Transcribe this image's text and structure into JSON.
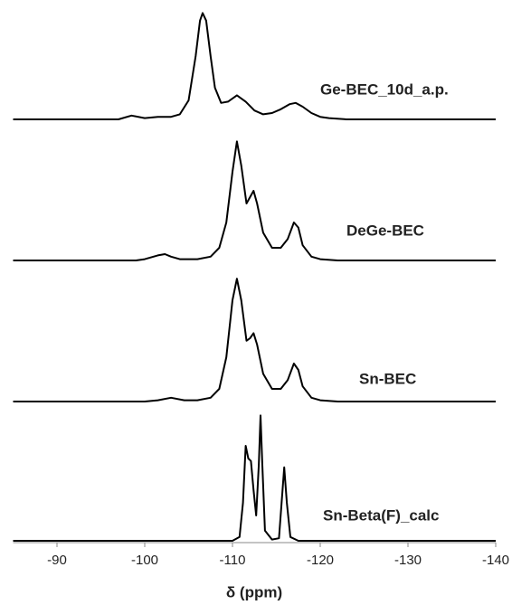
{
  "chart_data": {
    "type": "line",
    "x_label": "δ (ppm)",
    "color": "#000000",
    "xlim": [
      -85,
      -140
    ],
    "xticks": [
      -90,
      -100,
      -110,
      -120,
      -130,
      -140
    ],
    "ylim": [
      0,
      100
    ],
    "series": [
      {
        "name": "Ge-BEC_10d_a.p.",
        "x": [
          -85,
          -97,
          -98.5,
          -100,
          -101.5,
          -103,
          -104,
          -105,
          -105.8,
          -106.3,
          -106.6,
          -107,
          -107.5,
          -108,
          -108.7,
          -109.5,
          -110.5,
          -111.5,
          -112.5,
          -113.5,
          -114.5,
          -115.5,
          -116.5,
          -117.2,
          -118,
          -119,
          -120,
          -121,
          -123,
          -140
        ],
        "values": [
          0,
          0,
          3,
          1,
          2,
          2,
          4,
          15,
          50,
          78,
          84,
          78,
          50,
          25,
          13,
          14,
          19,
          14,
          7,
          4,
          5,
          8,
          12,
          13,
          10,
          5,
          2,
          1,
          0,
          0
        ]
      },
      {
        "name": "DeGe-BEC",
        "x": [
          -85,
          -99,
          -100,
          -101.5,
          -102.3,
          -103,
          -104,
          -106,
          -107.5,
          -108.5,
          -109.3,
          -110,
          -110.5,
          -111,
          -111.6,
          -112,
          -112.4,
          -112.8,
          -113.5,
          -114.5,
          -115.5,
          -116.3,
          -117,
          -117.5,
          -118,
          -119,
          -120,
          -122,
          -140
        ],
        "values": [
          0,
          0,
          1,
          4,
          5,
          3,
          1,
          1,
          3,
          10,
          30,
          70,
          94,
          75,
          45,
          50,
          55,
          45,
          22,
          10,
          10,
          17,
          30,
          26,
          12,
          3,
          1,
          0,
          0
        ]
      },
      {
        "name": "Sn-BEC",
        "x": [
          -85,
          -100,
          -101.5,
          -103,
          -104.5,
          -106,
          -107.5,
          -108.5,
          -109.3,
          -110,
          -110.5,
          -111,
          -111.6,
          -112,
          -112.4,
          -112.8,
          -113.5,
          -114.5,
          -115.5,
          -116.3,
          -117,
          -117.5,
          -118,
          -119,
          -120,
          -122,
          -140
        ],
        "values": [
          0,
          0,
          1,
          3,
          1,
          1,
          3,
          10,
          35,
          80,
          97,
          80,
          48,
          50,
          54,
          45,
          22,
          10,
          10,
          17,
          30,
          25,
          12,
          3,
          1,
          0,
          0
        ]
      },
      {
        "name": "Sn-Beta(F)_calc",
        "x": [
          -85,
          -110,
          -110.8,
          -111.2,
          -111.5,
          -111.8,
          -112.1,
          -112.4,
          -112.7,
          -113,
          -113.2,
          -113.4,
          -113.7,
          -114.5,
          -115.3,
          -115.6,
          -115.9,
          -116.2,
          -116.6,
          -117.5,
          -140
        ],
        "values": [
          0,
          0,
          3,
          30,
          75,
          65,
          63,
          40,
          20,
          60,
          99,
          60,
          8,
          1,
          2,
          30,
          58,
          30,
          3,
          0,
          0
        ]
      }
    ]
  }
}
